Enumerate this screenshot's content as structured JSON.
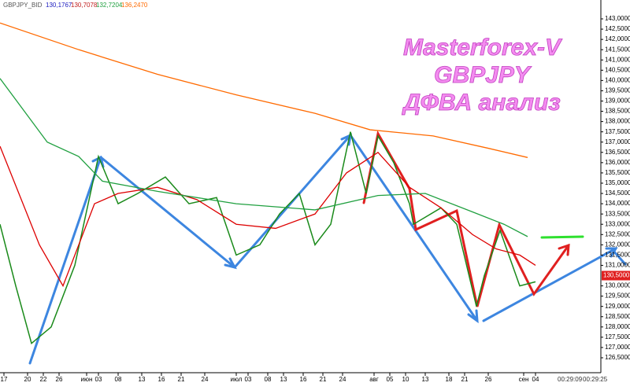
{
  "chart_data": {
    "type": "line",
    "title": [
      "Masterforex-V",
      "GBPJPY",
      "ДФВА анализ"
    ],
    "info": [
      "GBPJPY_BID",
      "130,1767",
      "130,7078",
      "132,7204",
      "136,2470"
    ],
    "price_label": {
      "value": 130.5,
      "label": "130,5000"
    },
    "times": [
      "00:29:09",
      "00:29:25"
    ],
    "xlim": [
      0,
      152
    ],
    "ylim": [
      126.5,
      143
    ],
    "xticks": [
      {
        "value": 1,
        "label": "17"
      },
      {
        "value": 7,
        "label": "20"
      },
      {
        "value": 11,
        "label": "22"
      },
      {
        "value": 15,
        "label": "26"
      },
      {
        "value": 22,
        "label": "июн"
      },
      {
        "value": 25,
        "label": "03"
      },
      {
        "value": 30,
        "label": "08"
      },
      {
        "value": 36,
        "label": "13"
      },
      {
        "value": 41,
        "label": "16"
      },
      {
        "value": 46,
        "label": "21"
      },
      {
        "value": 52,
        "label": "24"
      },
      {
        "value": 60,
        "label": "июл"
      },
      {
        "value": 63,
        "label": "03"
      },
      {
        "value": 68,
        "label": "08"
      },
      {
        "value": 72,
        "label": "13"
      },
      {
        "value": 77,
        "label": "16"
      },
      {
        "value": 82,
        "label": "21"
      },
      {
        "value": 87,
        "label": "24"
      },
      {
        "value": 95,
        "label": "авг"
      },
      {
        "value": 99,
        "label": "05"
      },
      {
        "value": 103,
        "label": "10"
      },
      {
        "value": 108,
        "label": "13"
      },
      {
        "value": 114,
        "label": "18"
      },
      {
        "value": 118,
        "label": "21"
      },
      {
        "value": 124,
        "label": "26"
      },
      {
        "value": 133,
        "label": "сен"
      },
      {
        "value": 136,
        "label": "04"
      }
    ],
    "yticks": [
      {
        "value": 126.5,
        "label": "126,5000"
      },
      {
        "value": 127,
        "label": "127,0000"
      },
      {
        "value": 127.5,
        "label": "127,5000"
      },
      {
        "value": 128,
        "label": "128,0000"
      },
      {
        "value": 128.5,
        "label": "128,5000"
      },
      {
        "value": 129,
        "label": "129,0000"
      },
      {
        "value": 129.5,
        "label": "129,5000"
      },
      {
        "value": 130,
        "label": "130,0000"
      },
      {
        "value": 131,
        "label": "131,0000"
      },
      {
        "value": 131.5,
        "label": "131,5000"
      },
      {
        "value": 132,
        "label": "132,0000"
      },
      {
        "value": 132.5,
        "label": "132,5000"
      },
      {
        "value": 133,
        "label": "133,0000"
      },
      {
        "value": 133.5,
        "label": "133,5000"
      },
      {
        "value": 134,
        "label": "134,0000"
      },
      {
        "value": 134.5,
        "label": "134,5000"
      },
      {
        "value": 135,
        "label": "135,0000"
      },
      {
        "value": 135.5,
        "label": "135,5000"
      },
      {
        "value": 136,
        "label": "136,0000"
      },
      {
        "value": 136.5,
        "label": "136,5000"
      },
      {
        "value": 137,
        "label": "137,0000"
      },
      {
        "value": 137.5,
        "label": "137,5000"
      },
      {
        "value": 138,
        "label": "138,0000"
      },
      {
        "value": 138.5,
        "label": "138,5000"
      },
      {
        "value": 139,
        "label": "139,0000"
      },
      {
        "value": 139.5,
        "label": "139,5000"
      },
      {
        "value": 140,
        "label": "140,0000"
      },
      {
        "value": 140.5,
        "label": "140,5000"
      },
      {
        "value": 141,
        "label": "141,0000"
      },
      {
        "value": 141.5,
        "label": "141,5000"
      },
      {
        "value": 142,
        "label": "142,0000"
      },
      {
        "value": 142.5,
        "label": "142,5000"
      },
      {
        "value": 143,
        "label": "143,0000"
      }
    ],
    "series": [
      {
        "color": "#1a8a1a",
        "x": [
          0,
          4,
          8,
          13,
          19,
          25,
          30,
          35,
          42,
          48,
          55,
          60,
          66,
          71,
          76,
          80,
          84,
          89,
          93,
          96,
          100,
          104,
          105,
          112,
          116,
          121,
          123,
          127,
          132,
          136
        ],
        "values": [
          133,
          130,
          127.2,
          128,
          131,
          136.3,
          134,
          134.5,
          135.3,
          134,
          134.3,
          131.5,
          132,
          133.5,
          134.5,
          132,
          133,
          137.5,
          134.5,
          137.3,
          136,
          134,
          133,
          133.8,
          133,
          129,
          130.5,
          132.7,
          130,
          130.2
        ]
      },
      {
        "color": "#dd0000",
        "x": [
          0,
          10,
          16,
          24,
          30,
          40,
          50,
          60,
          70,
          80,
          88,
          96,
          104,
          112,
          120,
          126,
          132,
          136
        ],
        "values": [
          136.8,
          132,
          130,
          134,
          134.5,
          134.8,
          134.2,
          133,
          132.8,
          133.5,
          135.5,
          136.5,
          134.8,
          133.8,
          132.5,
          131.8,
          131.5,
          131
        ]
      },
      {
        "color": "#20a040",
        "x": [
          0,
          12,
          20,
          26,
          40,
          60,
          80,
          96,
          108,
          120,
          128,
          134
        ],
        "values": [
          140.1,
          137,
          136.3,
          135.1,
          134.6,
          134,
          133.7,
          134.4,
          134.5,
          133.6,
          133,
          132.4
        ]
      },
      {
        "color": "#ff6a00",
        "x": [
          0,
          20,
          40,
          60,
          80,
          94,
          110,
          124,
          134
        ],
        "values": [
          142.8,
          141.5,
          140.3,
          139.3,
          138.4,
          137.6,
          137.3,
          136.7,
          136.25
        ]
      }
    ]
  }
}
